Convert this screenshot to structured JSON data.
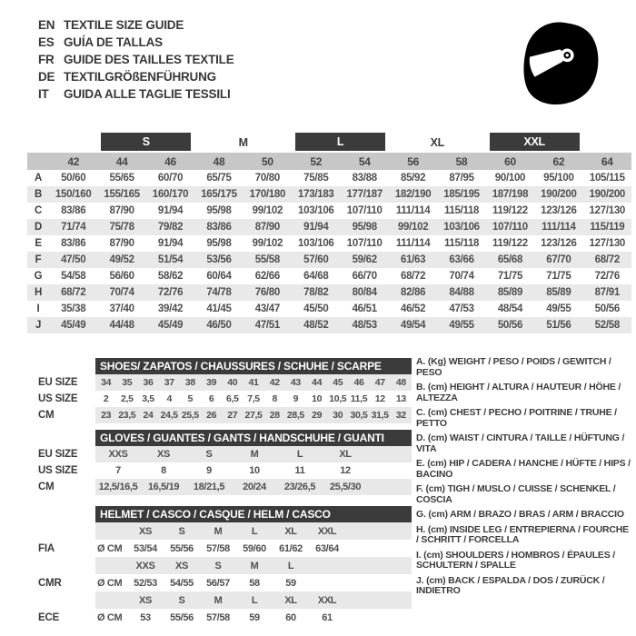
{
  "header": {
    "languages": [
      {
        "code": "EN",
        "text": "TEXTILE SIZE GUIDE"
      },
      {
        "code": "ES",
        "text": "GUÍA DE TALLAS"
      },
      {
        "code": "FR",
        "text": "GUIDE DES TAILLES TEXTILE"
      },
      {
        "code": "DE",
        "text": "TEXTILGRÖßENFÜHRUNG"
      },
      {
        "code": "IT",
        "text": "GUIDA ALLE TAGLIE TESSILI"
      }
    ],
    "icon": "racing-helmet"
  },
  "textile_table": {
    "size_groups": [
      {
        "label": "S",
        "boxed": true
      },
      {
        "label": "M",
        "boxed": false
      },
      {
        "label": "L",
        "boxed": true
      },
      {
        "label": "XL",
        "boxed": false
      },
      {
        "label": "XXL",
        "boxed": true
      }
    ],
    "numeric_sizes": [
      "42",
      "44",
      "46",
      "48",
      "50",
      "52",
      "54",
      "56",
      "58",
      "60",
      "62",
      "64"
    ],
    "rows": [
      {
        "letter": "A",
        "values": [
          "50/60",
          "55/65",
          "60/70",
          "65/75",
          "70/80",
          "75/85",
          "83/88",
          "85/92",
          "87/95",
          "90/100",
          "95/100",
          "105/115"
        ]
      },
      {
        "letter": "B",
        "values": [
          "150/160",
          "155/165",
          "160/170",
          "165/175",
          "170/180",
          "173/183",
          "177/187",
          "182/190",
          "185/195",
          "187/198",
          "190/200",
          "190/200"
        ]
      },
      {
        "letter": "C",
        "values": [
          "83/86",
          "87/90",
          "91/94",
          "95/98",
          "99/102",
          "103/106",
          "107/110",
          "111/114",
          "115/118",
          "119/122",
          "123/126",
          "127/130"
        ]
      },
      {
        "letter": "D",
        "values": [
          "71/74",
          "75/78",
          "79/82",
          "83/86",
          "87/90",
          "91/94",
          "95/98",
          "99/102",
          "103/106",
          "107/110",
          "111/114",
          "115/119"
        ]
      },
      {
        "letter": "E",
        "values": [
          "83/86",
          "87/90",
          "91/94",
          "95/98",
          "99/102",
          "103/106",
          "107/110",
          "111/114",
          "115/118",
          "119/122",
          "123/126",
          "127/130"
        ]
      },
      {
        "letter": "F",
        "values": [
          "47/50",
          "49/52",
          "51/54",
          "53/56",
          "55/58",
          "57/60",
          "59/62",
          "61/63",
          "63/66",
          "65/68",
          "67/70",
          "68/72"
        ]
      },
      {
        "letter": "G",
        "values": [
          "54/58",
          "56/60",
          "58/62",
          "60/64",
          "62/66",
          "64/68",
          "66/70",
          "68/72",
          "70/74",
          "71/75",
          "71/75",
          "72/76"
        ]
      },
      {
        "letter": "H",
        "values": [
          "68/72",
          "70/74",
          "72/76",
          "74/78",
          "76/80",
          "78/82",
          "80/84",
          "82/86",
          "84/88",
          "85/89",
          "85/89",
          "87/91"
        ]
      },
      {
        "letter": "I",
        "values": [
          "35/38",
          "37/40",
          "39/42",
          "41/45",
          "43/47",
          "45/50",
          "46/51",
          "46/52",
          "47/53",
          "48/54",
          "49/55",
          "50/56"
        ]
      },
      {
        "letter": "J",
        "values": [
          "45/49",
          "44/48",
          "45/49",
          "46/50",
          "47/51",
          "48/52",
          "48/53",
          "49/54",
          "49/55",
          "50/56",
          "51/56",
          "52/58"
        ]
      }
    ]
  },
  "shoes": {
    "title": "SHOES/ ZAPATOS / CHAUSSURES / SCHUHE / SCARPE",
    "row_labels": [
      "EU SIZE",
      "US SIZE",
      "CM"
    ],
    "eu": [
      "34",
      "35",
      "36",
      "37",
      "38",
      "39",
      "40",
      "41",
      "42",
      "43",
      "44",
      "45",
      "46",
      "47",
      "48"
    ],
    "us": [
      "2",
      "2,5",
      "3,5",
      "4",
      "5",
      "6",
      "6,5",
      "7,5",
      "8",
      "9",
      "10",
      "10,5",
      "11,5",
      "12",
      "13"
    ],
    "cm": [
      "23",
      "23,5",
      "24",
      "24,5",
      "25,5",
      "26",
      "27",
      "27,5",
      "28",
      "28,5",
      "29",
      "30",
      "30,5",
      "31,5",
      "32"
    ]
  },
  "gloves": {
    "title": "GLOVES / GUANTES / GANTS / HANDSCHUHE / GUANTI",
    "row_labels": [
      "EU SIZE",
      "US SIZE",
      "CM"
    ],
    "eu": [
      "XXS",
      "XS",
      "S",
      "M",
      "L",
      "XL"
    ],
    "us": [
      "7",
      "8",
      "9",
      "10",
      "11",
      "12"
    ],
    "cm": [
      "12,5/16,5",
      "16,5/19",
      "18/21,5",
      "20/24",
      "23/26,5",
      "25,5/30"
    ]
  },
  "helmet": {
    "title": "HELMET / CASCO / CASQUE / HELM / CASCO",
    "unit_label": "Ø CM",
    "standards": [
      {
        "name": "FIA",
        "sizes": [
          "XS",
          "S",
          "M",
          "L",
          "XL",
          "XXL"
        ],
        "values": [
          "53/54",
          "55/56",
          "57/58",
          "59/60",
          "61/62",
          "63/64"
        ]
      },
      {
        "name": "CMR",
        "sizes": [
          "XXS",
          "XS",
          "S",
          "M",
          "L",
          ""
        ],
        "values": [
          "52/53",
          "54/55",
          "56/57",
          "58",
          "59",
          ""
        ]
      },
      {
        "name": "ECE",
        "sizes": [
          "XS",
          "S",
          "M",
          "L",
          "XL",
          "XXL"
        ],
        "values": [
          "53",
          "55/56",
          "57/58",
          "59",
          "60",
          "61"
        ]
      }
    ]
  },
  "legend": {
    "items": [
      "A. (Kg) WEIGHT / PESO / POIDS / GEWITCH / PESO",
      "B. (cm) HEIGHT / ALTURA / HAUTEUR / HÖHE / ALTEZZA",
      "C. (cm) CHEST / PECHO / POITRINE / TRUHE / PETTO",
      "D. (cm) WAIST / CINTURA / TAILLE / HÜFTUNG / VITA",
      "E. (cm) HIP / CADERA / HANCHE / HÜFTE / HIPS / BACINO",
      "F. (cm) TIGH / MUSLO / CUISSE / SCHENKEL / COSCIA",
      "G. (cm) ARM / BRAZO / BRAS / ARM / BRACCIO",
      "H. (cm) INSIDE LEG / ENTREPIERNA / FOURCHE / SCHRITT / FORCELLA",
      "I. (cm) SHOULDERS / HOMBROS / ÉPAULES / SCHULTERN / SPALLE",
      "J. (cm) BACK / ESPALDA / DOS / ZURÜCK / INDIETRO"
    ]
  },
  "colors": {
    "dark_bar": "#3b3b3b",
    "numeric_band": "#c7c7c7",
    "row_band": "#e9e9e9",
    "text": "#4a4a4a"
  }
}
